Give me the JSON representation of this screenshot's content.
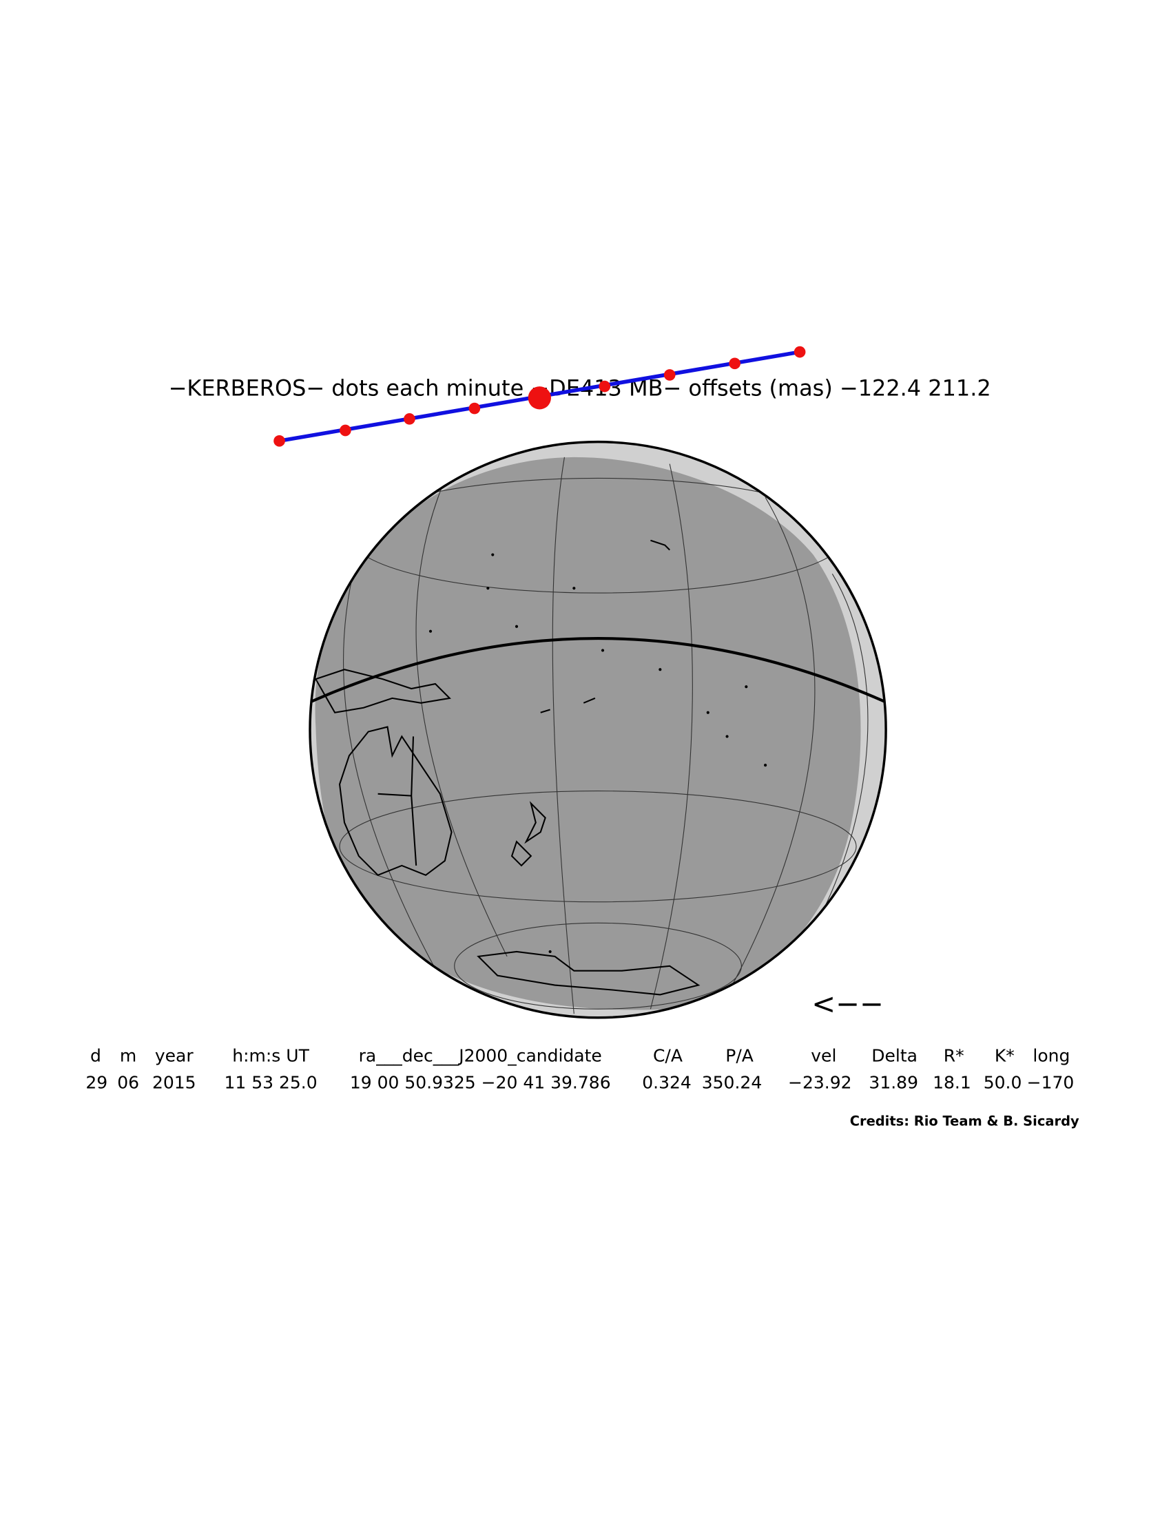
{
  "title": "−KERBEROS− dots each minute −DE413 MB− offsets (mas) −122.4   211.2",
  "arrow": "<−−",
  "table": {
    "header": [
      "d",
      "m",
      "year",
      "h:m:s UT",
      "ra___dec___J2000_candidate",
      "C/A",
      "P/A",
      "vel",
      "Delta",
      "R*",
      "K*",
      "long"
    ],
    "rows": [
      [
        "29",
        "06",
        "2015",
        "11 53 25.0",
        "19 00 50.9325 −20 41 39.786",
        "0.324",
        "350.24",
        "−23.92",
        "31.89",
        "18.1",
        "50.0",
        "−170"
      ]
    ]
  },
  "credits": "Credits: Rio Team & B. Sicardy"
}
